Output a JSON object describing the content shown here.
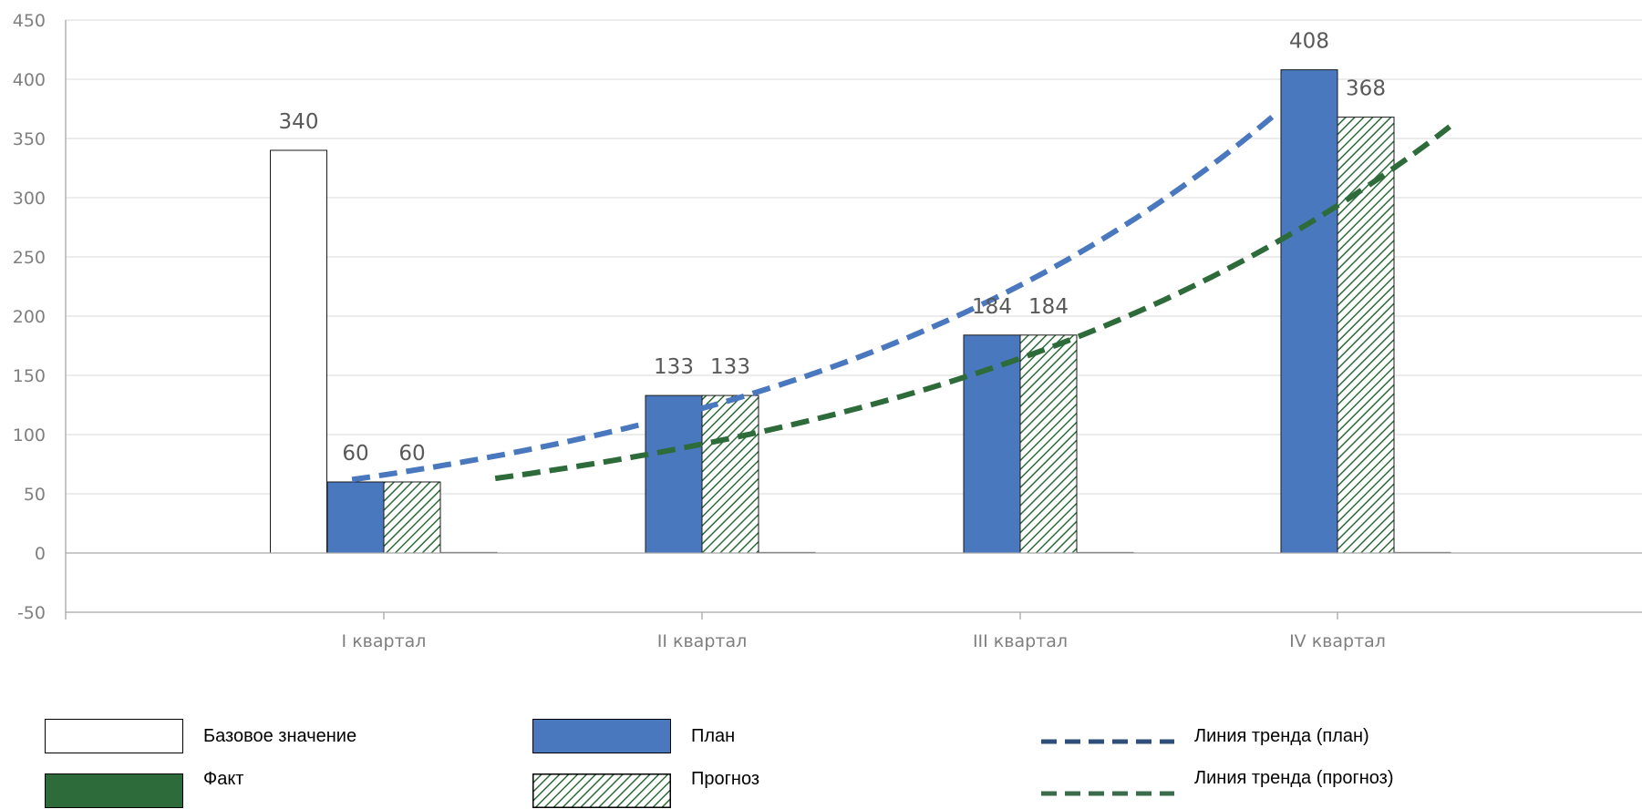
{
  "chart_data": {
    "type": "bar",
    "categories": [
      "I квартал",
      "II квартал",
      "III квартал",
      "IV квартал"
    ],
    "ylim": [
      -50,
      450
    ],
    "yticks": [
      -50,
      0,
      50,
      100,
      150,
      200,
      250,
      300,
      350,
      400,
      450
    ],
    "grid": true,
    "legend_position": "bottom",
    "series": [
      {
        "name": "Базовое значение",
        "kind": "bar",
        "fill": "#ffffff",
        "values": [
          340,
          0,
          0,
          0
        ],
        "labels": [
          "340",
          "",
          "",
          ""
        ]
      },
      {
        "name": "План",
        "kind": "bar",
        "fill": "#4a78bf",
        "values": [
          60,
          133,
          184,
          408
        ],
        "labels": [
          "60",
          "133",
          "184",
          "408"
        ]
      },
      {
        "name": "Прогноз",
        "kind": "bar",
        "fill": "hatch",
        "values": [
          60,
          133,
          184,
          368
        ],
        "labels": [
          "60",
          "133",
          "184",
          "368"
        ]
      },
      {
        "name": "Факт",
        "kind": "bar",
        "fill": "#2e6b3a",
        "values": [
          0,
          0,
          0,
          0
        ],
        "labels": [
          "",
          "",
          "",
          ""
        ]
      }
    ],
    "trendlines": [
      {
        "name": "Линия тренда (план)",
        "color": "#4a78bf",
        "type": "exponential",
        "x_start": 0.9,
        "x_end": 3.8,
        "y_start": 62,
        "y_end": 370
      },
      {
        "name": "Линия тренда (прогноз)",
        "color": "#2e6b3a",
        "type": "exponential",
        "x_start": 1.35,
        "x_end": 4.35,
        "y_start": 63,
        "y_end": 360
      }
    ]
  },
  "legend": {
    "items": [
      {
        "label": "Базовое значение",
        "swatch": "white"
      },
      {
        "label": "План",
        "swatch": "blue"
      },
      {
        "label": "Линия тренда (план)",
        "swatch": "blue-dash"
      },
      {
        "label": "Факт",
        "swatch": "green"
      },
      {
        "label": "Прогноз",
        "swatch": "hatch"
      },
      {
        "label": "Линия тренда (прогноз)",
        "swatch": "green-dash"
      }
    ]
  },
  "colors": {
    "plan": "#4a78bf",
    "fact": "#2e6b3a",
    "trend_plan_legend": "#2f4f7a",
    "trend_forecast_legend": "#3a6b4a",
    "axis": "#a6a6a6",
    "grid": "#d9d9d9"
  }
}
